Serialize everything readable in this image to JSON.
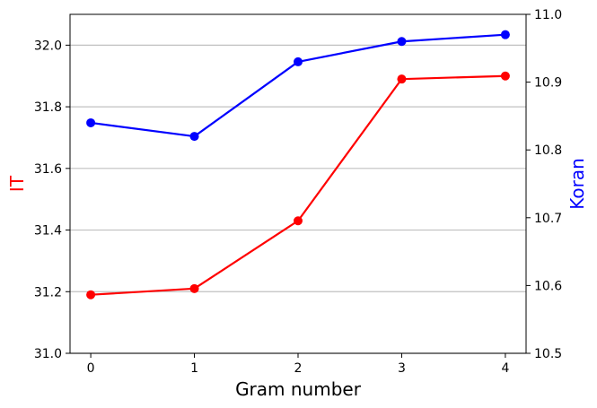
{
  "chart_data": {
    "type": "line",
    "x": [
      0,
      1,
      2,
      3,
      4
    ],
    "xticks": [
      "0",
      "1",
      "2",
      "3",
      "4"
    ],
    "xlabel": "Gram number",
    "xlim": [
      -0.2,
      4.2
    ],
    "left_axis": {
      "label": "IT",
      "color": "#ff0000",
      "ylim": [
        31.0,
        32.1
      ],
      "ticks": [
        "31.0",
        "31.2",
        "31.4",
        "31.6",
        "31.8",
        "32.0"
      ]
    },
    "right_axis": {
      "label": "Koran",
      "color": "#0000ff",
      "ylim": [
        10.5,
        11.0
      ],
      "ticks": [
        "10.5",
        "10.6",
        "10.7",
        "10.8",
        "10.9",
        "11.0"
      ]
    },
    "series": [
      {
        "axis": "left",
        "color": "#ff0000",
        "values": [
          31.19,
          31.21,
          31.43,
          31.89,
          31.9
        ]
      },
      {
        "axis": "right",
        "color": "#0000ff",
        "values": [
          10.84,
          10.82,
          10.93,
          10.96,
          10.97
        ]
      }
    ],
    "grid": {
      "horizontal": true,
      "vertical": false,
      "color": "#c0c0c0"
    }
  }
}
